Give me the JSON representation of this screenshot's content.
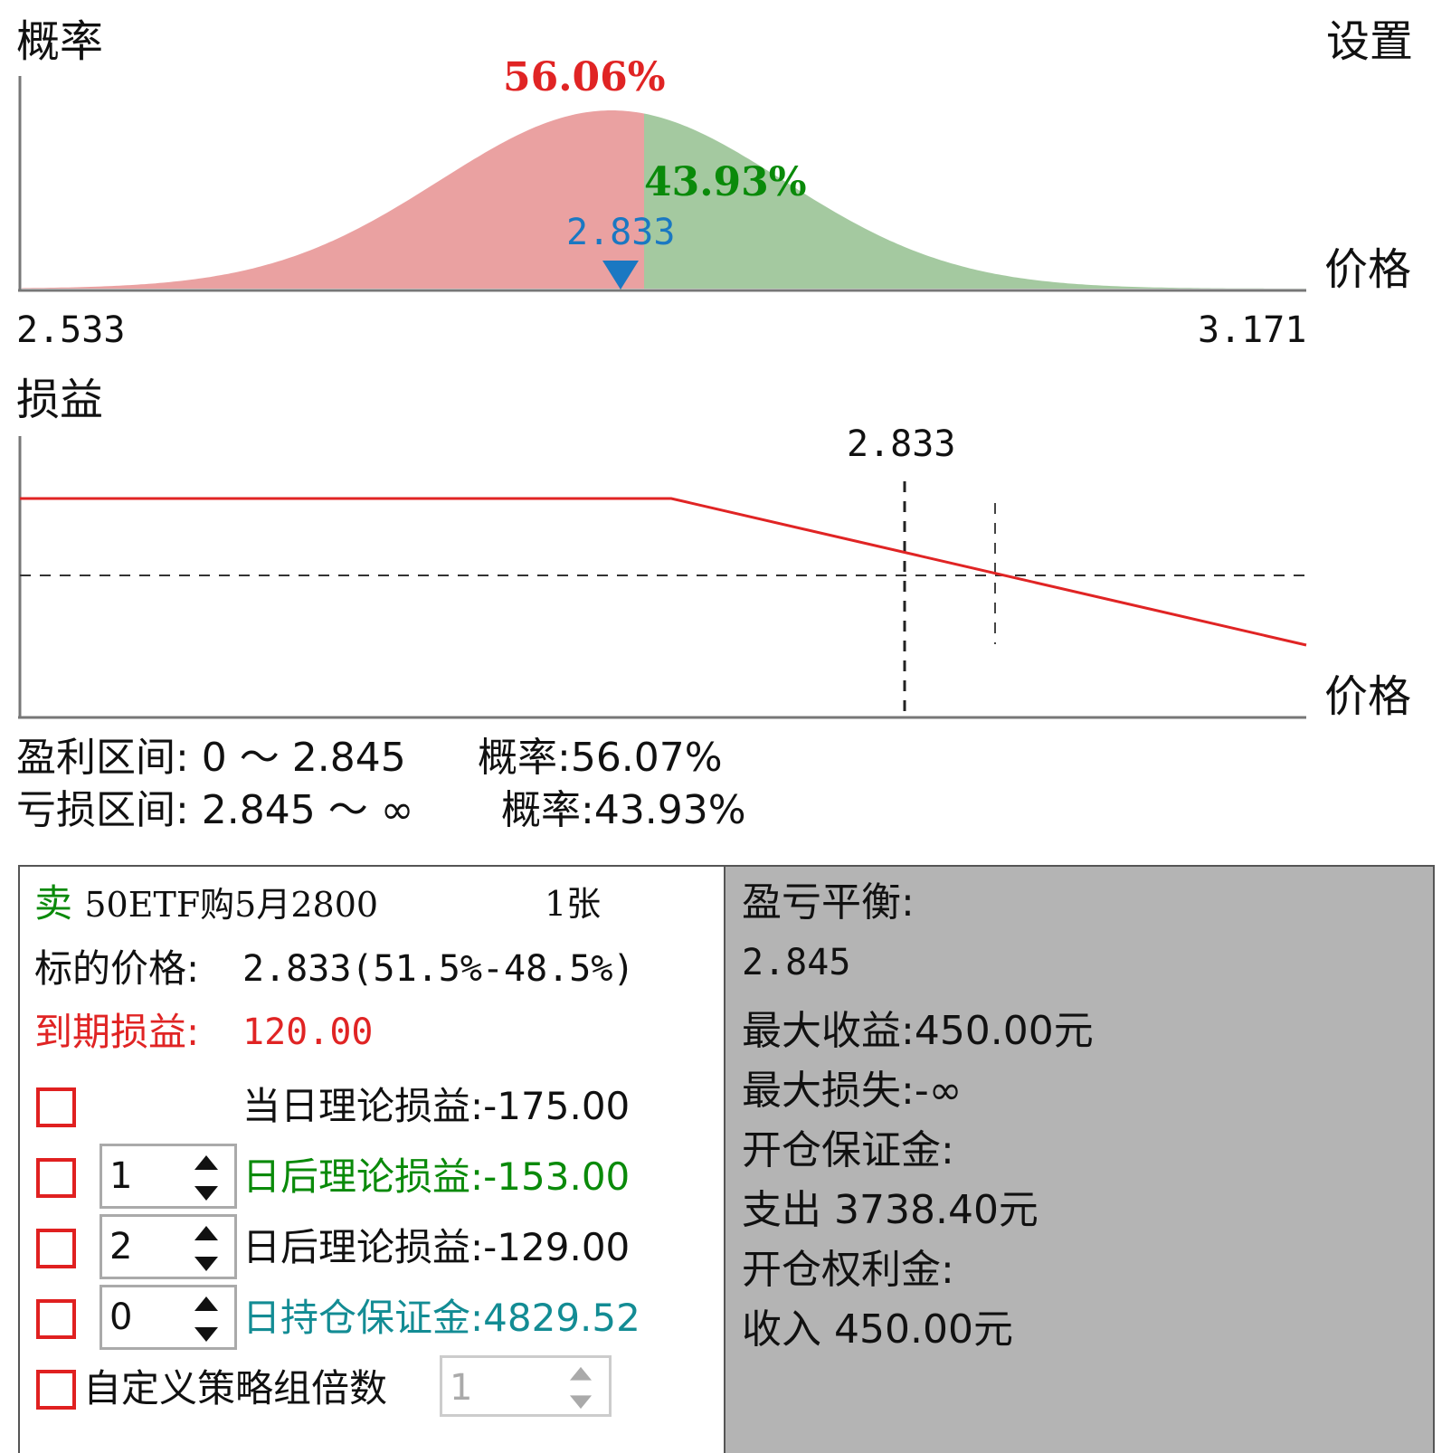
{
  "top": {
    "prob_label": "概率",
    "settings": "设置",
    "price_label": "价格",
    "pct_left": "56.06%",
    "pct_right": "43.93%",
    "marker_value": "2.833",
    "x_min": "2.533",
    "x_max": "3.171"
  },
  "pnl": {
    "label": "损益",
    "price_label": "价格",
    "marker_value": "2.833"
  },
  "summary": {
    "profit_range": "盈利区间: 0 ～ 2.845",
    "profit_prob": "概率:56.07%",
    "loss_range": "亏损区间: 2.845 ～ ∞",
    "loss_prob": "概率:43.93%"
  },
  "left_panel": {
    "side": "卖",
    "contract": "50ETF购5月2800",
    "qty": "1张",
    "underlying_label": "标的价格:",
    "underlying_value": "2.833(51.5%-48.5%)",
    "expiry_label": "到期损益:",
    "expiry_value": "120.00",
    "today_row": "当日理论损益:-175.00",
    "row2_spin": "1",
    "row2_text": "日后理论损益:-153.00",
    "row3_spin": "2",
    "row3_text": "日后理论损益:-129.00",
    "row4_spin": "0",
    "row4_text": "日持仓保证金:4829.52",
    "custom_label": "自定义策略组倍数",
    "custom_value": "1"
  },
  "right_panel": {
    "breakeven_label": "盈亏平衡:",
    "breakeven_value": "2.845",
    "max_profit": "最大收益:450.00元",
    "max_loss": "最大损失:-∞",
    "margin_label": "开仓保证金:",
    "margin_value": "支出 3738.40元",
    "premium_label": "开仓权利金:",
    "premium_value": "收入 450.00元"
  },
  "colors": {
    "red": "#e02424",
    "green": "#0a8a0a",
    "teal": "#138c94",
    "blue": "#1a78c2",
    "fill_red": "#eaa1a1",
    "fill_green": "#a4c9a0"
  }
}
